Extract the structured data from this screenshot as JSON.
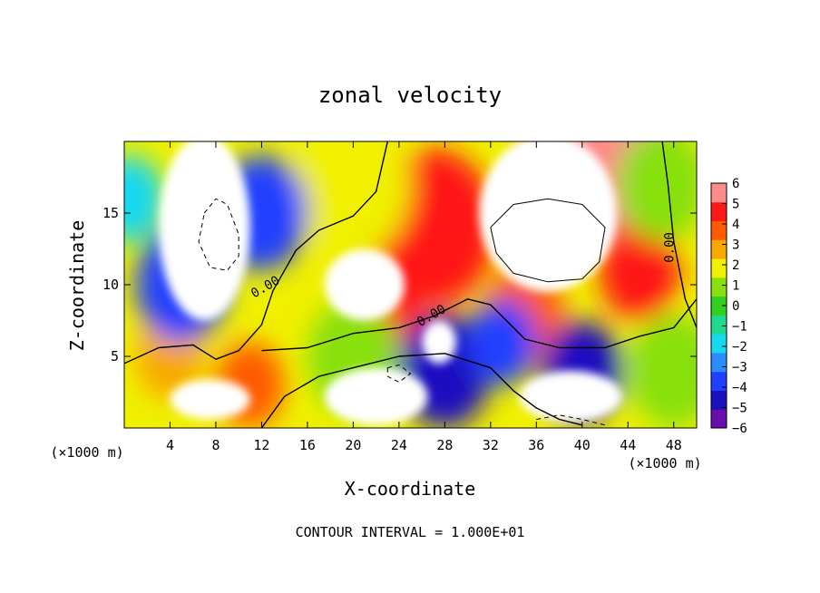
{
  "chart_data": {
    "type": "heatmap",
    "title": "zonal velocity",
    "xlabel": "X-coordinate",
    "ylabel": "Z-coordinate",
    "x_unit_note": "(×1000 m)",
    "y_unit_note": "(×1000 m)",
    "footer": "CONTOUR INTERVAL = 1.000E+01",
    "xlim": [
      0,
      50
    ],
    "ylim": [
      0,
      20
    ],
    "x_ticks": [
      4,
      8,
      12,
      16,
      20,
      24,
      28,
      32,
      36,
      40,
      44,
      48
    ],
    "y_ticks": [
      5,
      10,
      15
    ],
    "colorbar": {
      "min": -6,
      "max": 6,
      "ticks": [
        6,
        5,
        4,
        3,
        2,
        1,
        0,
        -1,
        -2,
        -3,
        -4,
        -5,
        -6
      ],
      "tick_labels": [
        "6",
        "5",
        "4",
        "3",
        "2",
        "1",
        "0",
        "−1",
        "−2",
        "−3",
        "−4",
        "−5",
        "−6"
      ],
      "colors": [
        "#6a0dad",
        "#1a10c0",
        "#2040ff",
        "#2a8cff",
        "#18d8f0",
        "#20d890",
        "#30d020",
        "#88e010",
        "#f0f000",
        "#f8a800",
        "#ff5a00",
        "#ff1818",
        "#ff8a8a"
      ]
    },
    "contour_labels": [
      {
        "text": "0.00",
        "x": 12.5,
        "y": 9.6
      },
      {
        "text": "0.00",
        "x": 27.0,
        "y": 7.6
      },
      {
        "text": "0.00",
        "x": 48.0,
        "y": 12.6
      }
    ],
    "field_blobs": [
      {
        "x": 41,
        "y": 19,
        "v": 5.5,
        "r": 6.0
      },
      {
        "x": 27,
        "y": 14,
        "v": 5.0,
        "r": 5.5
      },
      {
        "x": 23,
        "y": 8,
        "v": 5.0,
        "r": 3.0
      },
      {
        "x": 45,
        "y": 11,
        "v": 4.5,
        "r": 3.5
      },
      {
        "x": 35,
        "y": 8,
        "v": 4.0,
        "r": 3.5
      },
      {
        "x": 20,
        "y": 17,
        "v": 1.5,
        "r": 5.0
      },
      {
        "x": 20,
        "y": 5,
        "v": 0.5,
        "r": 4.0
      },
      {
        "x": 48,
        "y": 4,
        "v": 0.5,
        "r": 4.0
      },
      {
        "x": 4,
        "y": 5,
        "v": 3.0,
        "r": 3.0
      },
      {
        "x": 11,
        "y": 3,
        "v": 3.5,
        "r": 3.0
      },
      {
        "x": 28,
        "y": 4,
        "v": -5.0,
        "r": 4.0
      },
      {
        "x": 5,
        "y": 10,
        "v": -3.5,
        "r": 4.0
      },
      {
        "x": 12,
        "y": 15,
        "v": -4.0,
        "r": 4.0
      },
      {
        "x": 0.5,
        "y": 16,
        "v": -2.0,
        "r": 3.0
      },
      {
        "x": 33,
        "y": 6,
        "v": -4.0,
        "r": 3.0
      },
      {
        "x": 40,
        "y": 4,
        "v": -4.5,
        "r": 3.5
      },
      {
        "x": 47,
        "y": 17,
        "v": 1.0,
        "r": 4.0
      }
    ],
    "white_regions": [
      {
        "cx": 7,
        "cy": 14,
        "rx": 4.0,
        "ry": 6.5
      },
      {
        "cx": 21,
        "cy": 10,
        "rx": 3.5,
        "ry": 2.5
      },
      {
        "cx": 37,
        "cy": 15,
        "rx": 6.0,
        "ry": 5.5
      },
      {
        "cx": 7.5,
        "cy": 2,
        "rx": 3.5,
        "ry": 1.4
      },
      {
        "cx": 22,
        "cy": 2.2,
        "rx": 4.5,
        "ry": 2.0
      },
      {
        "cx": 39,
        "cy": 2.2,
        "rx": 4.5,
        "ry": 1.8
      },
      {
        "cx": 27.5,
        "cy": 6.0,
        "rx": 1.5,
        "ry": 1.5
      }
    ],
    "zero_contours": [
      [
        [
          0,
          4.5
        ],
        [
          3,
          5.6
        ],
        [
          6,
          5.8
        ],
        [
          8,
          4.8
        ],
        [
          10,
          5.4
        ],
        [
          12,
          7.2
        ],
        [
          13,
          9.6
        ],
        [
          15,
          12.4
        ],
        [
          17,
          13.8
        ],
        [
          20,
          14.8
        ],
        [
          22,
          16.5
        ],
        [
          23,
          20
        ]
      ],
      [
        [
          12,
          5.4
        ],
        [
          16,
          5.6
        ],
        [
          20,
          6.6
        ],
        [
          24,
          7.0
        ],
        [
          27,
          7.8
        ],
        [
          30,
          9.0
        ],
        [
          32,
          8.6
        ],
        [
          35,
          6.2
        ],
        [
          38,
          5.6
        ],
        [
          42,
          5.6
        ],
        [
          45,
          6.4
        ],
        [
          48,
          7.0
        ],
        [
          50,
          9.0
        ]
      ],
      [
        [
          12,
          0
        ],
        [
          14,
          2.2
        ],
        [
          17,
          3.6
        ],
        [
          20,
          4.2
        ],
        [
          24,
          5.0
        ],
        [
          28,
          5.2
        ],
        [
          32,
          4.2
        ],
        [
          34,
          2.6
        ],
        [
          36,
          1.4
        ],
        [
          38,
          0.6
        ],
        [
          40,
          0.2
        ]
      ],
      [
        [
          47,
          20
        ],
        [
          47.5,
          17
        ],
        [
          48,
          13
        ],
        [
          49,
          9
        ],
        [
          50,
          7
        ]
      ]
    ],
    "positive_contour": [
      [
        32,
        14
      ],
      [
        34,
        15.6
      ],
      [
        37,
        16.0
      ],
      [
        40,
        15.6
      ],
      [
        42,
        14
      ],
      [
        41.5,
        11.6
      ],
      [
        40,
        10.4
      ],
      [
        37,
        10.2
      ],
      [
        34,
        10.8
      ],
      [
        32.5,
        12.2
      ],
      [
        32,
        14
      ]
    ],
    "negative_contours": [
      [
        [
          7,
          15
        ],
        [
          8,
          16
        ],
        [
          9,
          15.6
        ],
        [
          10,
          13.5
        ],
        [
          10,
          12
        ],
        [
          9,
          11
        ],
        [
          7.5,
          11.2
        ],
        [
          6.5,
          13
        ],
        [
          7,
          15
        ]
      ],
      [
        [
          23,
          4.2
        ],
        [
          24,
          4.4
        ],
        [
          25,
          3.8
        ],
        [
          24,
          3.2
        ],
        [
          23,
          3.6
        ],
        [
          23,
          4.2
        ]
      ],
      [
        [
          36,
          0.6
        ],
        [
          38,
          0.9
        ],
        [
          40,
          0.6
        ],
        [
          42,
          0.2
        ]
      ]
    ]
  }
}
